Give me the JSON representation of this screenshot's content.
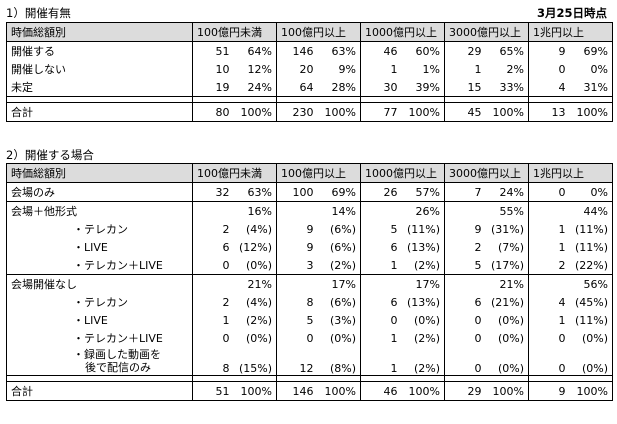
{
  "date_label": "3月25日時点",
  "section1": {
    "title": "1）開催有無",
    "header": [
      "時価総額別",
      "100億円未満",
      "100億円以上",
      "1000億円以上",
      "3000億円以上",
      "1兆円以上"
    ],
    "rows": [
      {
        "label": "開催する",
        "cells": [
          [
            "51",
            "64%"
          ],
          [
            "146",
            "63%"
          ],
          [
            "46",
            "60%"
          ],
          [
            "29",
            "65%"
          ],
          [
            "9",
            "69%"
          ]
        ]
      },
      {
        "label": "開催しない",
        "cells": [
          [
            "10",
            "12%"
          ],
          [
            "20",
            "9%"
          ],
          [
            "1",
            "1%"
          ],
          [
            "1",
            "2%"
          ],
          [
            "0",
            "0%"
          ]
        ]
      },
      {
        "label": "未定",
        "cells": [
          [
            "19",
            "24%"
          ],
          [
            "64",
            "28%"
          ],
          [
            "30",
            "39%"
          ],
          [
            "15",
            "33%"
          ],
          [
            "4",
            "31%"
          ]
        ]
      }
    ],
    "total": {
      "label": "合計",
      "cells": [
        [
          "80",
          "100%"
        ],
        [
          "230",
          "100%"
        ],
        [
          "77",
          "100%"
        ],
        [
          "45",
          "100%"
        ],
        [
          "13",
          "100%"
        ]
      ]
    }
  },
  "section2": {
    "title": "2）開催する場合",
    "header": [
      "時価総額別",
      "100億円未満",
      "100億円以上",
      "1000億円以上",
      "3000億円以上",
      "1兆円以上"
    ],
    "row_only": {
      "label": "会場のみ",
      "cells": [
        [
          "32",
          "63%"
        ],
        [
          "100",
          "69%"
        ],
        [
          "26",
          "57%"
        ],
        [
          "7",
          "24%"
        ],
        [
          "0",
          "0%"
        ]
      ]
    },
    "group1": {
      "label": "会場＋他形式",
      "pcts": [
        "16%",
        "14%",
        "26%",
        "55%",
        "44%"
      ],
      "subs": [
        {
          "label": "・テレカン",
          "cells": [
            [
              "2",
              "(4%)"
            ],
            [
              "9",
              "(6%)"
            ],
            [
              "5",
              "(11%)"
            ],
            [
              "9",
              "(31%)"
            ],
            [
              "1",
              "(11%)"
            ]
          ]
        },
        {
          "label": "・LIVE",
          "cells": [
            [
              "6",
              "(12%)"
            ],
            [
              "9",
              "(6%)"
            ],
            [
              "6",
              "(13%)"
            ],
            [
              "2",
              "(7%)"
            ],
            [
              "1",
              "(11%)"
            ]
          ]
        },
        {
          "label": "・テレカン＋LIVE",
          "cells": [
            [
              "0",
              "(0%)"
            ],
            [
              "3",
              "(2%)"
            ],
            [
              "1",
              "(2%)"
            ],
            [
              "5",
              "(17%)"
            ],
            [
              "2",
              "(22%)"
            ]
          ]
        }
      ]
    },
    "group2": {
      "label": "会場開催なし",
      "pcts": [
        "21%",
        "17%",
        "17%",
        "21%",
        "56%"
      ],
      "subs": [
        {
          "label": "・テレカン",
          "cells": [
            [
              "2",
              "(4%)"
            ],
            [
              "8",
              "(6%)"
            ],
            [
              "6",
              "(13%)"
            ],
            [
              "6",
              "(21%)"
            ],
            [
              "4",
              "(45%)"
            ]
          ]
        },
        {
          "label": "・LIVE",
          "cells": [
            [
              "1",
              "(2%)"
            ],
            [
              "5",
              "(3%)"
            ],
            [
              "0",
              "(0%)"
            ],
            [
              "0",
              "(0%)"
            ],
            [
              "1",
              "(11%)"
            ]
          ]
        },
        {
          "label": "・テレカン＋LIVE",
          "cells": [
            [
              "0",
              "(0%)"
            ],
            [
              "0",
              "(0%)"
            ],
            [
              "1",
              "(2%)"
            ],
            [
              "0",
              "(0%)"
            ],
            [
              "0",
              "(0%)"
            ]
          ]
        },
        {
          "label_line1": "・録画した動画を",
          "label_line2": "後で配信のみ",
          "cells": [
            [
              "8",
              "(15%)"
            ],
            [
              "12",
              "(8%)"
            ],
            [
              "1",
              "(2%)"
            ],
            [
              "0",
              "(0%)"
            ],
            [
              "0",
              "(0%)"
            ]
          ]
        }
      ]
    },
    "total": {
      "label": "合計",
      "cells": [
        [
          "51",
          "100%"
        ],
        [
          "146",
          "100%"
        ],
        [
          "46",
          "100%"
        ],
        [
          "29",
          "100%"
        ],
        [
          "9",
          "100%"
        ]
      ]
    }
  }
}
